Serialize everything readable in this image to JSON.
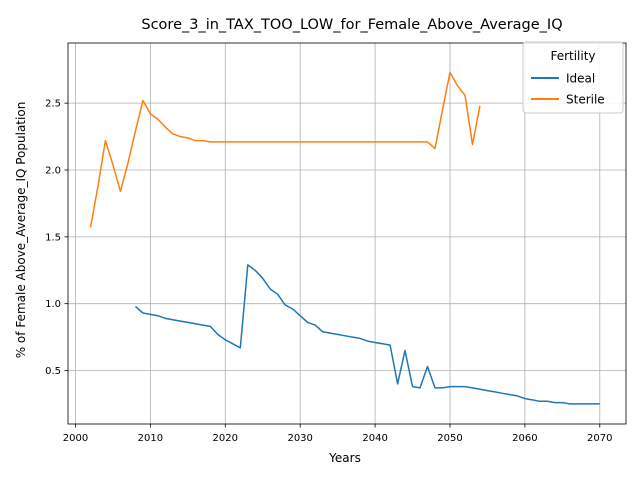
{
  "chart_data": {
    "type": "line",
    "title": "Score_3_in_TAX_TOO_LOW_for_Female_Above_Average_IQ",
    "xlabel": "Years",
    "ylabel": "% of Female Above_Average_IQ Population",
    "xlim": [
      1999,
      2073.5
    ],
    "ylim": [
      0.1,
      2.95
    ],
    "x_ticks": [
      2000,
      2010,
      2020,
      2030,
      2040,
      2050,
      2060,
      2070
    ],
    "y_ticks": [
      0.5,
      1.0,
      1.5,
      2.0,
      2.5
    ],
    "x_tick_labels": [
      "2000",
      "2010",
      "2020",
      "2030",
      "2040",
      "2050",
      "2060",
      "2070"
    ],
    "y_tick_labels": [
      "0.5",
      "1.0",
      "1.5",
      "2.0",
      "2.5"
    ],
    "grid": true,
    "legend": {
      "title": "Fertility",
      "placement": "upper-right"
    },
    "series": [
      {
        "name": "Ideal",
        "color": "#1f77b4",
        "points": [
          [
            2008,
            0.98
          ],
          [
            2009,
            0.93
          ],
          [
            2010,
            0.92
          ],
          [
            2011,
            0.91
          ],
          [
            2012,
            0.89
          ],
          [
            2013,
            0.88
          ],
          [
            2014,
            0.87
          ],
          [
            2015,
            0.86
          ],
          [
            2016,
            0.85
          ],
          [
            2017,
            0.84
          ],
          [
            2018,
            0.83
          ],
          [
            2019,
            0.77
          ],
          [
            2020,
            0.73
          ],
          [
            2021,
            0.7
          ],
          [
            2022,
            0.67
          ],
          [
            2023,
            1.29
          ],
          [
            2024,
            1.25
          ],
          [
            2025,
            1.19
          ],
          [
            2026,
            1.11
          ],
          [
            2027,
            1.07
          ],
          [
            2028,
            0.99
          ],
          [
            2029,
            0.96
          ],
          [
            2030,
            0.91
          ],
          [
            2031,
            0.86
          ],
          [
            2032,
            0.84
          ],
          [
            2033,
            0.79
          ],
          [
            2034,
            0.78
          ],
          [
            2035,
            0.77
          ],
          [
            2036,
            0.76
          ],
          [
            2037,
            0.75
          ],
          [
            2038,
            0.74
          ],
          [
            2039,
            0.72
          ],
          [
            2040,
            0.71
          ],
          [
            2041,
            0.7
          ],
          [
            2042,
            0.69
          ],
          [
            2043,
            0.4
          ],
          [
            2044,
            0.65
          ],
          [
            2045,
            0.38
          ],
          [
            2046,
            0.37
          ],
          [
            2047,
            0.53
          ],
          [
            2048,
            0.37
          ],
          [
            2049,
            0.37
          ],
          [
            2050,
            0.38
          ],
          [
            2051,
            0.38
          ],
          [
            2052,
            0.38
          ],
          [
            2053,
            0.37
          ],
          [
            2054,
            0.36
          ],
          [
            2055,
            0.35
          ],
          [
            2056,
            0.34
          ],
          [
            2057,
            0.33
          ],
          [
            2058,
            0.32
          ],
          [
            2059,
            0.31
          ],
          [
            2060,
            0.29
          ],
          [
            2061,
            0.28
          ],
          [
            2062,
            0.27
          ],
          [
            2063,
            0.27
          ],
          [
            2064,
            0.26
          ],
          [
            2065,
            0.26
          ],
          [
            2066,
            0.25
          ],
          [
            2067,
            0.25
          ],
          [
            2068,
            0.25
          ],
          [
            2069,
            0.25
          ],
          [
            2070,
            0.25
          ]
        ]
      },
      {
        "name": "Sterile",
        "color": "#ff7f0e",
        "points": [
          [
            2002,
            1.57
          ],
          [
            2003,
            1.88
          ],
          [
            2004,
            2.22
          ],
          [
            2005,
            2.04
          ],
          [
            2006,
            1.84
          ],
          [
            2007,
            2.05
          ],
          [
            2008,
            2.29
          ],
          [
            2009,
            2.52
          ],
          [
            2010,
            2.42
          ],
          [
            2011,
            2.38
          ],
          [
            2012,
            2.32
          ],
          [
            2013,
            2.27
          ],
          [
            2014,
            2.25
          ],
          [
            2015,
            2.24
          ],
          [
            2016,
            2.22
          ],
          [
            2017,
            2.22
          ],
          [
            2018,
            2.21
          ],
          [
            2019,
            2.21
          ],
          [
            2020,
            2.21
          ],
          [
            2021,
            2.21
          ],
          [
            2022,
            2.21
          ],
          [
            2023,
            2.21
          ],
          [
            2024,
            2.21
          ],
          [
            2025,
            2.21
          ],
          [
            2026,
            2.21
          ],
          [
            2027,
            2.21
          ],
          [
            2028,
            2.21
          ],
          [
            2029,
            2.21
          ],
          [
            2030,
            2.21
          ],
          [
            2031,
            2.21
          ],
          [
            2032,
            2.21
          ],
          [
            2033,
            2.21
          ],
          [
            2034,
            2.21
          ],
          [
            2035,
            2.21
          ],
          [
            2036,
            2.21
          ],
          [
            2037,
            2.21
          ],
          [
            2038,
            2.21
          ],
          [
            2039,
            2.21
          ],
          [
            2040,
            2.21
          ],
          [
            2041,
            2.21
          ],
          [
            2042,
            2.21
          ],
          [
            2043,
            2.21
          ],
          [
            2044,
            2.21
          ],
          [
            2045,
            2.21
          ],
          [
            2046,
            2.21
          ],
          [
            2047,
            2.21
          ],
          [
            2048,
            2.16
          ],
          [
            2049,
            2.45
          ],
          [
            2050,
            2.73
          ],
          [
            2051,
            2.63
          ],
          [
            2052,
            2.56
          ],
          [
            2053,
            2.19
          ],
          [
            2054,
            2.48
          ]
        ]
      }
    ]
  }
}
